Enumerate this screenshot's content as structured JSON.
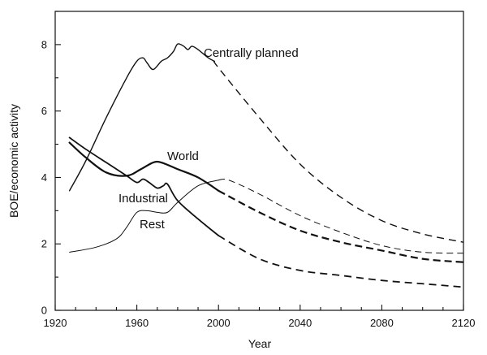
{
  "chart_data": {
    "type": "line",
    "title": "",
    "xlabel": "Year",
    "ylabel": "BOE/economic activity",
    "xlim": [
      1920,
      2120
    ],
    "ylim": [
      0,
      9
    ],
    "xticks": [
      1920,
      1960,
      2000,
      2040,
      2080,
      2120
    ],
    "yticks": [
      0,
      2,
      4,
      6,
      8
    ],
    "grid": false,
    "legend": "none",
    "series": [
      {
        "name": "Centrally planned",
        "color": "#111111",
        "historical": [
          [
            1927,
            3.6
          ],
          [
            1935,
            4.5
          ],
          [
            1945,
            5.8
          ],
          [
            1955,
            7.0
          ],
          [
            1960,
            7.5
          ],
          [
            1963,
            7.6
          ],
          [
            1965,
            7.45
          ],
          [
            1968,
            7.25
          ],
          [
            1972,
            7.5
          ],
          [
            1975,
            7.6
          ],
          [
            1978,
            7.8
          ],
          [
            1980,
            8.02
          ],
          [
            1983,
            7.95
          ],
          [
            1985,
            7.85
          ],
          [
            1987,
            7.95
          ],
          [
            1990,
            7.85
          ],
          [
            1995,
            7.6
          ],
          [
            1998,
            7.5
          ]
        ],
        "projection": [
          [
            1998,
            7.5
          ],
          [
            2000,
            7.3
          ],
          [
            2020,
            5.8
          ],
          [
            2040,
            4.4
          ],
          [
            2060,
            3.4
          ],
          [
            2080,
            2.7
          ],
          [
            2100,
            2.3
          ],
          [
            2120,
            2.05
          ]
        ]
      },
      {
        "name": "World",
        "color": "#111111",
        "historical": [
          [
            1927,
            5.05
          ],
          [
            1935,
            4.6
          ],
          [
            1945,
            4.15
          ],
          [
            1955,
            4.05
          ],
          [
            1962,
            4.25
          ],
          [
            1968,
            4.45
          ],
          [
            1972,
            4.45
          ],
          [
            1980,
            4.25
          ],
          [
            1990,
            4.0
          ],
          [
            2000,
            3.6
          ]
        ],
        "projection": [
          [
            2000,
            3.6
          ],
          [
            2020,
            2.95
          ],
          [
            2040,
            2.4
          ],
          [
            2060,
            2.05
          ],
          [
            2080,
            1.8
          ],
          [
            2100,
            1.55
          ],
          [
            2120,
            1.45
          ]
        ]
      },
      {
        "name": "Industrial",
        "color": "#111111",
        "historical": [
          [
            1927,
            5.2
          ],
          [
            1935,
            4.85
          ],
          [
            1945,
            4.45
          ],
          [
            1955,
            4.05
          ],
          [
            1960,
            3.85
          ],
          [
            1963,
            3.95
          ],
          [
            1966,
            3.85
          ],
          [
            1970,
            3.68
          ],
          [
            1973,
            3.75
          ],
          [
            1975,
            3.8
          ],
          [
            1980,
            3.3
          ],
          [
            1990,
            2.75
          ],
          [
            2000,
            2.25
          ]
        ],
        "projection": [
          [
            2000,
            2.25
          ],
          [
            2020,
            1.55
          ],
          [
            2040,
            1.2
          ],
          [
            2060,
            1.05
          ],
          [
            2080,
            0.9
          ],
          [
            2100,
            0.8
          ],
          [
            2120,
            0.7
          ]
        ]
      },
      {
        "name": "Rest",
        "color": "#111111",
        "historical": [
          [
            1927,
            1.75
          ],
          [
            1940,
            1.9
          ],
          [
            1950,
            2.15
          ],
          [
            1955,
            2.5
          ],
          [
            1960,
            2.95
          ],
          [
            1965,
            3.0
          ],
          [
            1970,
            2.95
          ],
          [
            1975,
            2.95
          ],
          [
            1980,
            3.25
          ],
          [
            1990,
            3.75
          ],
          [
            2000,
            3.92
          ]
        ],
        "projection": [
          [
            2000,
            3.92
          ],
          [
            2005,
            3.92
          ],
          [
            2020,
            3.5
          ],
          [
            2040,
            2.85
          ],
          [
            2060,
            2.35
          ],
          [
            2080,
            1.95
          ],
          [
            2100,
            1.75
          ],
          [
            2120,
            1.72
          ]
        ]
      }
    ],
    "annotations": [
      "Centrally planned",
      "World",
      "Industrial",
      "Rest"
    ]
  }
}
